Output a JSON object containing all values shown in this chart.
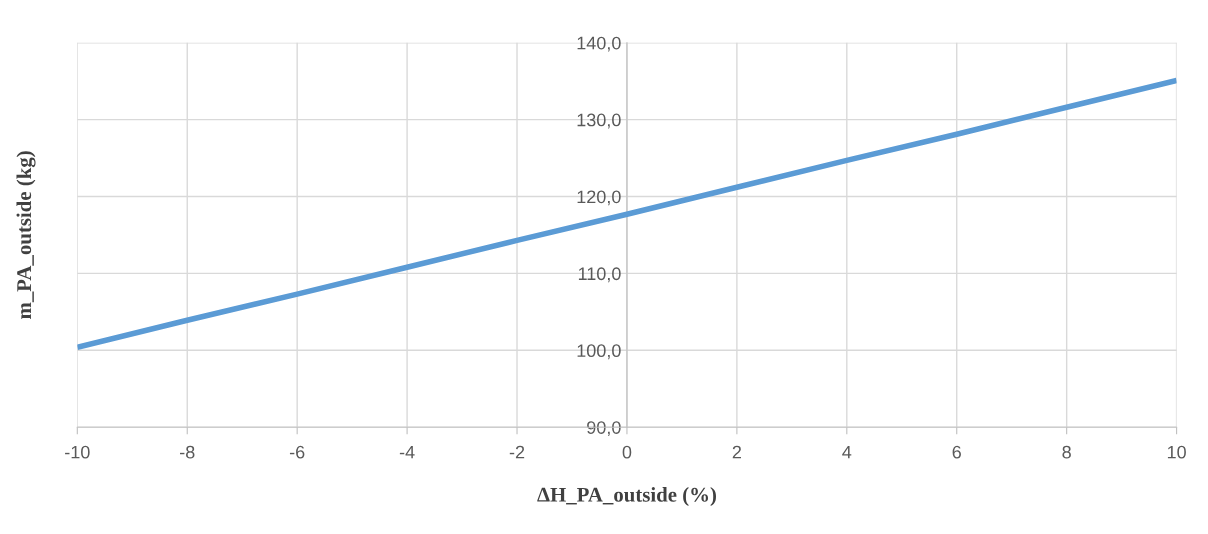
{
  "chart_data": {
    "type": "line",
    "xlabel": "ΔH_PA_outside (%)",
    "ylabel": "m_PA_outside (kg)",
    "x": [
      -10,
      -8,
      -6,
      -4,
      -2,
      0,
      2,
      4,
      6,
      8,
      10
    ],
    "series": [
      {
        "color": "#5b9bd5",
        "values": [
          100.4,
          103.9,
          107.3,
          110.8,
          114.3,
          117.7,
          121.2,
          124.7,
          128.1,
          131.6,
          135.1
        ]
      }
    ],
    "xlim": [
      -10,
      10
    ],
    "xticks": [
      -10,
      -8,
      -6,
      -4,
      -2,
      0,
      2,
      4,
      6,
      8,
      10
    ],
    "ylim": [
      90,
      140
    ],
    "yticks": [
      {
        "value": 90,
        "label": "90,0"
      },
      {
        "value": 100,
        "label": "100,0"
      },
      {
        "value": 110,
        "label": "110,0"
      },
      {
        "value": 120,
        "label": "120,0"
      },
      {
        "value": 130,
        "label": "130,0"
      },
      {
        "value": 140,
        "label": "140,0"
      }
    ],
    "grid": true,
    "marker": "none",
    "line_style": "solid"
  }
}
